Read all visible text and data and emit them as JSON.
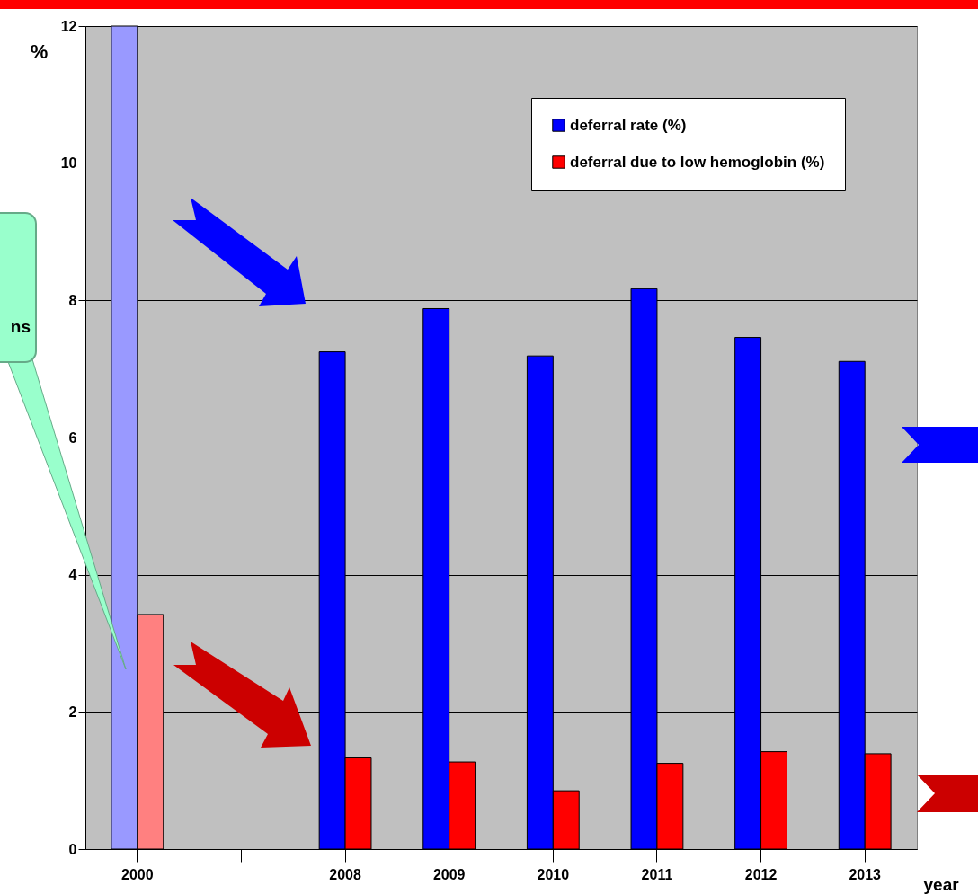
{
  "chart_data": {
    "type": "bar",
    "xlabel": "year",
    "ylabel": "%",
    "categories": [
      "2000",
      null,
      "2008",
      "2009",
      "2010",
      "2011",
      "2012",
      "2013"
    ],
    "series": [
      {
        "name": "deferral rate (%)",
        "color": "#0000ff",
        "colors": [
          "#9999ff",
          null,
          "#0000ff",
          "#0000ff",
          "#0000ff",
          "#0000ff",
          "#0000ff",
          "#0000ff"
        ],
        "values": [
          12.0,
          null,
          7.25,
          7.88,
          7.19,
          8.17,
          7.46,
          7.11
        ]
      },
      {
        "name": "deferral due to low hemoglobin (%)",
        "color": "#ff0000",
        "colors": [
          "#ff8080",
          null,
          "#ff0000",
          "#ff0000",
          "#ff0000",
          "#ff0000",
          "#ff0000",
          "#ff0000"
        ],
        "values": [
          3.42,
          null,
          1.33,
          1.27,
          0.85,
          1.25,
          1.42,
          1.39
        ]
      }
    ],
    "ylim": [
      0,
      12
    ],
    "yticks": [
      0,
      2,
      4,
      6,
      8,
      10,
      12
    ],
    "grid": "y",
    "legend": "top right",
    "annotations": [
      "ns"
    ]
  }
}
